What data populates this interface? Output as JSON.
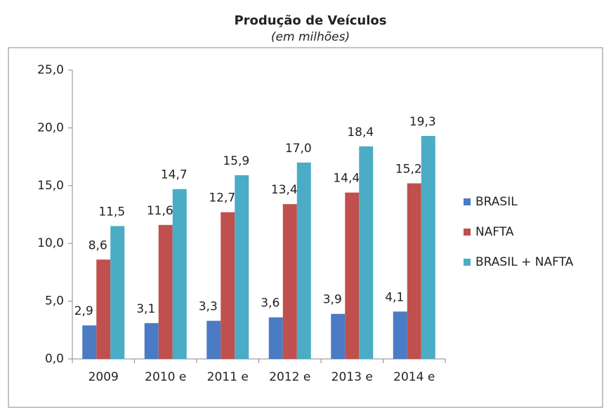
{
  "chart_data": {
    "type": "bar",
    "title": "Produção de Veículos",
    "subtitle": "(em milhões)",
    "categories": [
      "2009",
      "2010 e",
      "2011 e",
      "2012 e",
      "2013 e",
      "2014 e"
    ],
    "series": [
      {
        "name": "BRASIL",
        "color": "#4a7bc4",
        "values": [
          2.9,
          3.1,
          3.3,
          3.6,
          3.9,
          4.1
        ],
        "value_labels": [
          "2,9",
          "3,1",
          "3,3",
          "3,6",
          "3,9",
          "4,1"
        ]
      },
      {
        "name": "NAFTA",
        "color": "#c0504d",
        "values": [
          8.6,
          11.6,
          12.7,
          13.4,
          14.4,
          15.2
        ],
        "value_labels": [
          "8,6",
          "11,6",
          "12,7",
          "13,4",
          "14,4",
          "15,2"
        ]
      },
      {
        "name": "BRASIL + NAFTA",
        "color": "#4bacc6",
        "values": [
          11.5,
          14.7,
          15.9,
          17.0,
          18.4,
          19.3
        ],
        "value_labels": [
          "11,5",
          "14,7",
          "15,9",
          "17,0",
          "18,4",
          "19,3"
        ]
      }
    ],
    "ylim": [
      0,
      25
    ],
    "yticks": [
      {
        "value": 0,
        "label": "0,0"
      },
      {
        "value": 5,
        "label": "5,0"
      },
      {
        "value": 10,
        "label": "10,0"
      },
      {
        "value": 15,
        "label": "15,0"
      },
      {
        "value": 20,
        "label": "20,0"
      },
      {
        "value": 25,
        "label": "25,0"
      }
    ],
    "grid": false,
    "legend": "right"
  }
}
